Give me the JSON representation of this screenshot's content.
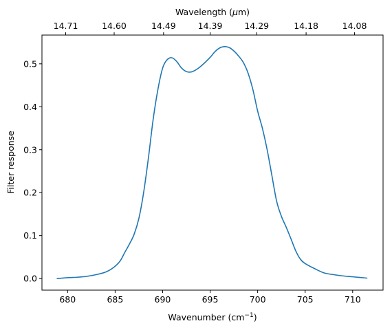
{
  "chart_data": {
    "type": "line",
    "xlabel": "Wavenumber (cm",
    "xlabel_sup": "−1",
    "xlabel_close": ")",
    "ylabel": "Filter response",
    "top_xlabel_pre": "Wavelength (",
    "top_xlabel_mu": "μ",
    "top_xlabel_post": "m)",
    "xlim": [
      677.3,
      713.2
    ],
    "ylim": [
      -0.027,
      0.567
    ],
    "x_ticks": [
      680,
      685,
      690,
      695,
      700,
      705,
      710
    ],
    "y_ticks": [
      0.0,
      0.1,
      0.2,
      0.3,
      0.4,
      0.5
    ],
    "y_tick_labels": [
      "0.0",
      "0.1",
      "0.2",
      "0.3",
      "0.4",
      "0.5"
    ],
    "top_ticks": [
      {
        "wavenumber": 679.8,
        "label": "14.71"
      },
      {
        "wavenumber": 684.9,
        "label": "14.60"
      },
      {
        "wavenumber": 690.1,
        "label": "14.49"
      },
      {
        "wavenumber": 695.0,
        "label": "14.39"
      },
      {
        "wavenumber": 699.9,
        "label": "14.29"
      },
      {
        "wavenumber": 705.1,
        "label": "14.18"
      },
      {
        "wavenumber": 710.2,
        "label": "14.08"
      }
    ],
    "series": [
      {
        "color": "#1f77b4",
        "points": [
          [
            678.9,
            0.0
          ],
          [
            680.0,
            0.002
          ],
          [
            681.0,
            0.003
          ],
          [
            682.0,
            0.005
          ],
          [
            683.0,
            0.009
          ],
          [
            684.0,
            0.015
          ],
          [
            684.8,
            0.025
          ],
          [
            685.5,
            0.04
          ],
          [
            686.0,
            0.06
          ],
          [
            686.5,
            0.08
          ],
          [
            687.0,
            0.103
          ],
          [
            687.5,
            0.14
          ],
          [
            688.0,
            0.2
          ],
          [
            688.5,
            0.28
          ],
          [
            689.0,
            0.37
          ],
          [
            689.5,
            0.44
          ],
          [
            690.0,
            0.49
          ],
          [
            690.5,
            0.51
          ],
          [
            691.0,
            0.514
          ],
          [
            691.5,
            0.505
          ],
          [
            692.0,
            0.49
          ],
          [
            692.5,
            0.482
          ],
          [
            693.0,
            0.481
          ],
          [
            693.5,
            0.486
          ],
          [
            694.0,
            0.494
          ],
          [
            694.5,
            0.504
          ],
          [
            695.0,
            0.515
          ],
          [
            695.5,
            0.528
          ],
          [
            696.0,
            0.537
          ],
          [
            696.5,
            0.54
          ],
          [
            697.0,
            0.538
          ],
          [
            697.5,
            0.53
          ],
          [
            698.0,
            0.518
          ],
          [
            698.5,
            0.503
          ],
          [
            699.0,
            0.478
          ],
          [
            699.5,
            0.44
          ],
          [
            700.0,
            0.39
          ],
          [
            700.5,
            0.35
          ],
          [
            701.0,
            0.3
          ],
          [
            701.5,
            0.24
          ],
          [
            702.0,
            0.18
          ],
          [
            702.5,
            0.145
          ],
          [
            703.0,
            0.12
          ],
          [
            703.5,
            0.093
          ],
          [
            704.0,
            0.065
          ],
          [
            704.5,
            0.045
          ],
          [
            705.0,
            0.035
          ],
          [
            706.0,
            0.023
          ],
          [
            707.0,
            0.013
          ],
          [
            708.0,
            0.009
          ],
          [
            709.0,
            0.006
          ],
          [
            710.0,
            0.004
          ],
          [
            711.5,
            0.001
          ]
        ]
      }
    ]
  }
}
